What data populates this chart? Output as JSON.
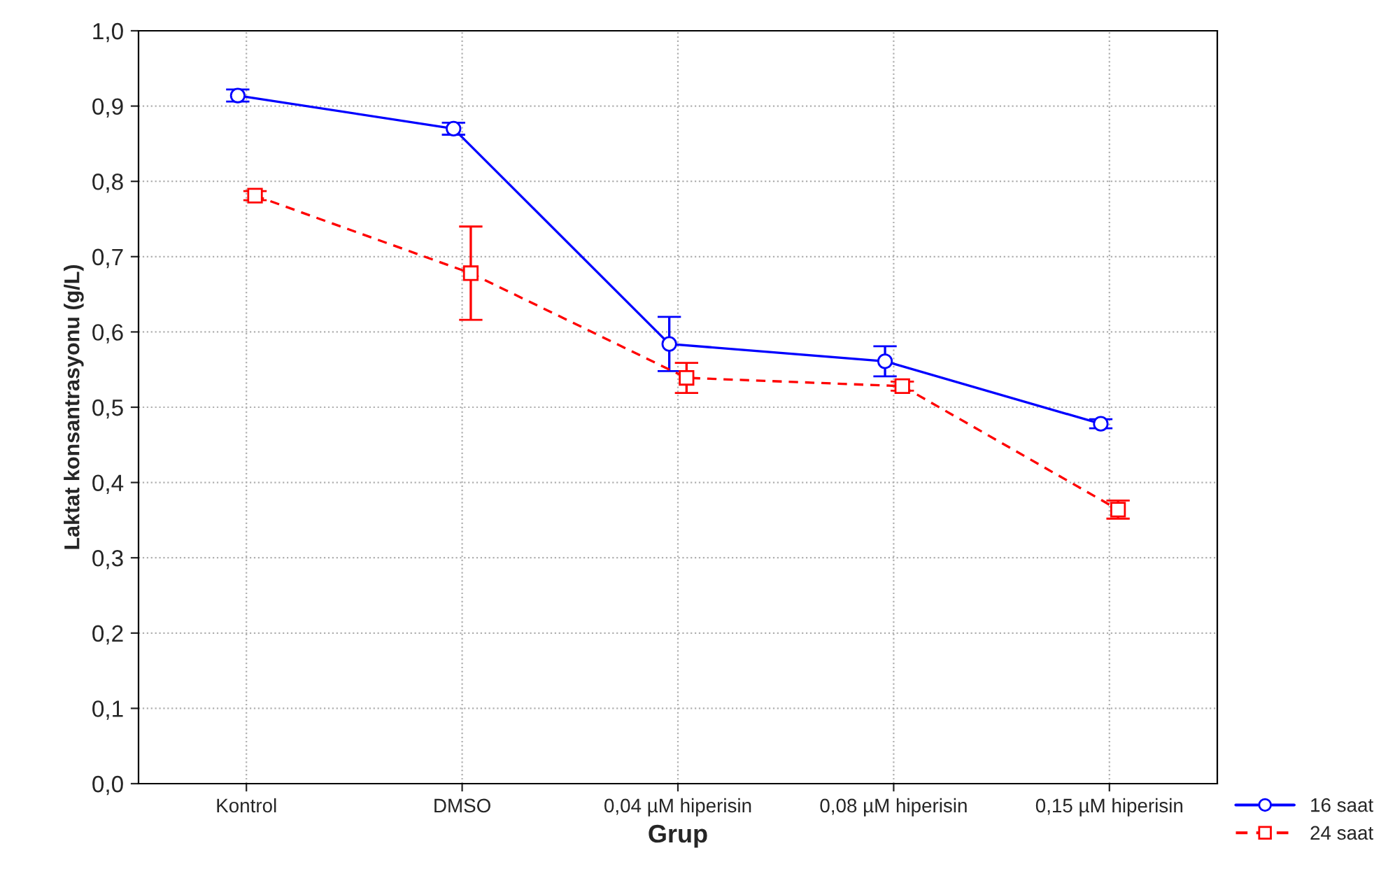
{
  "chart_data": {
    "type": "line",
    "xlabel": "Grup",
    "ylabel": "Laktat konsantrasyonu (g/L)",
    "categories": [
      "Kontrol",
      "DMSO",
      "0,04 µM hiperisin",
      "0,08 µM hiperisin",
      "0,15 µM hiperisin"
    ],
    "series": [
      {
        "name": "16 saat",
        "color": "#0000ff",
        "marker": "circle",
        "line_style": "solid",
        "values": [
          0.914,
          0.87,
          0.584,
          0.561,
          0.478
        ],
        "errors": [
          0.008,
          0.008,
          0.036,
          0.02,
          0.006
        ]
      },
      {
        "name": "24 saat",
        "color": "#ff0000",
        "marker": "square",
        "line_style": "dashed",
        "values": [
          0.781,
          0.678,
          0.539,
          0.528,
          0.364
        ],
        "errors": [
          0.006,
          0.062,
          0.02,
          0.006,
          0.012
        ]
      }
    ],
    "ylim": [
      0,
      1
    ],
    "yticks": [
      {
        "value": 0,
        "label": "0,0"
      },
      {
        "value": 0.1,
        "label": "0,1"
      },
      {
        "value": 0.2,
        "label": "0,2"
      },
      {
        "value": 0.3,
        "label": "0,3"
      },
      {
        "value": 0.4,
        "label": "0,4"
      },
      {
        "value": 0.5,
        "label": "0,5"
      },
      {
        "value": 0.6,
        "label": "0,6"
      },
      {
        "value": 0.7,
        "label": "0,7"
      },
      {
        "value": 0.8,
        "label": "0,8"
      },
      {
        "value": 0.9,
        "label": "0,9"
      },
      {
        "value": 1,
        "label": "1,0"
      }
    ],
    "grid": true,
    "legend": "bottom right"
  }
}
